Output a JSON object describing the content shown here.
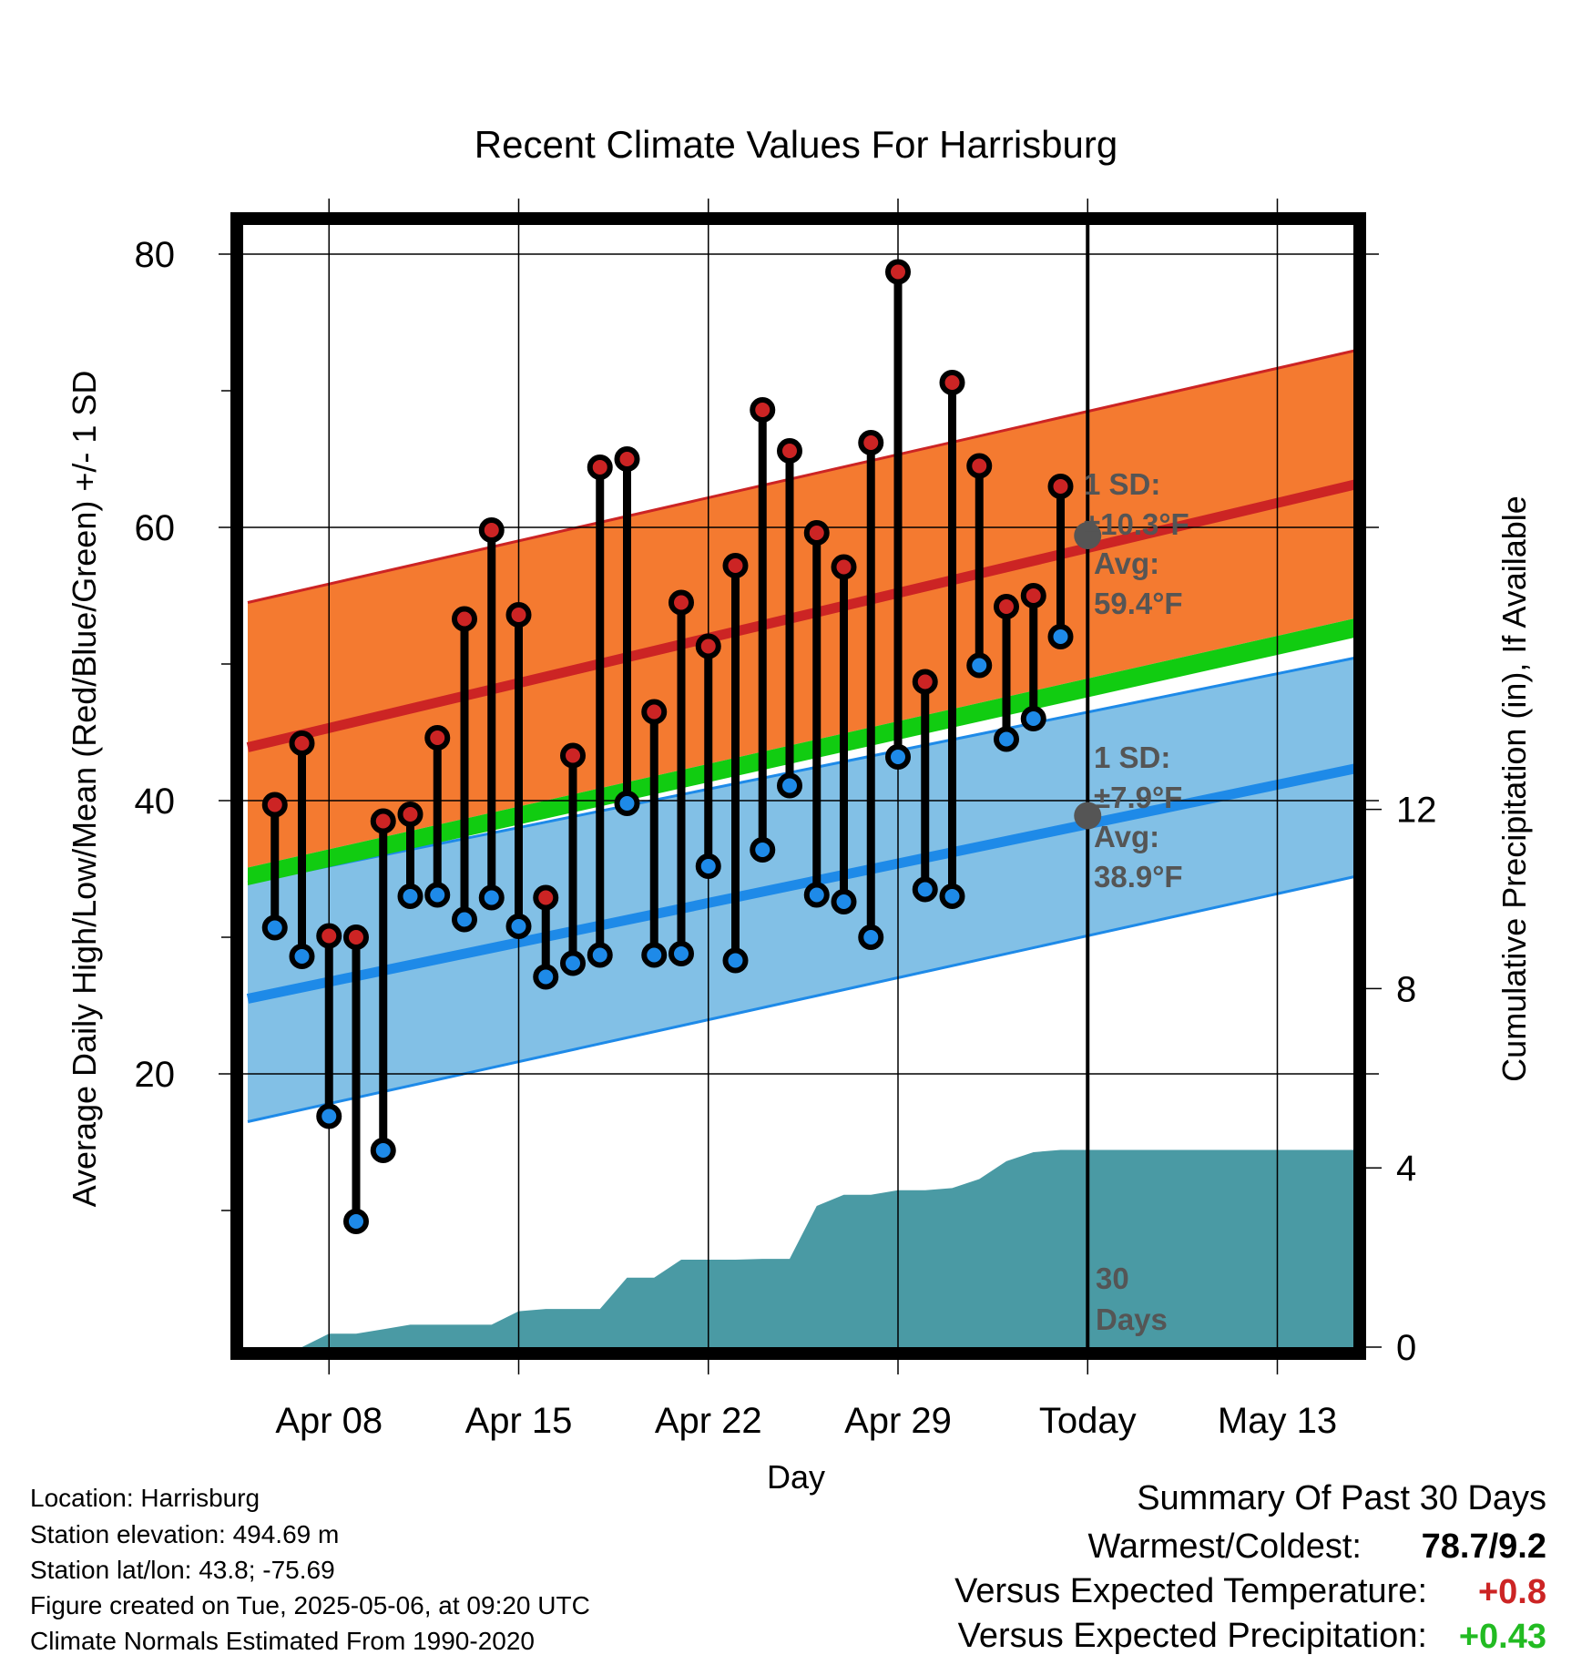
{
  "chart_data": {
    "type": "line",
    "title": "Recent Climate Values For Harrisburg",
    "xlabel": "Day",
    "ylabel": "Average Daily High/Low/Mean (Red/Blue/Green) +/- 1 SD",
    "ylabel_right": "Cumulative Precipitation (in), If Available",
    "ylim": [
      0,
      85
    ],
    "ylim_right": [
      0,
      24
    ],
    "x_start": "Apr 05",
    "today_index": 31,
    "x_ticks": [
      {
        "index": 3,
        "label": "Apr 08"
      },
      {
        "index": 10,
        "label": "Apr 15"
      },
      {
        "index": 17,
        "label": "Apr 22"
      },
      {
        "index": 24,
        "label": "Apr 29"
      },
      {
        "index": 31,
        "label": "Today"
      },
      {
        "index": 38,
        "label": "May 13"
      }
    ],
    "y_ticks": [
      20,
      40,
      60,
      80
    ],
    "y_ticks_right": [
      0,
      4,
      8,
      12
    ],
    "normals": {
      "x": [
        0,
        41
      ],
      "high_mean": [
        43.9,
        63.2
      ],
      "high_upper": [
        54.5,
        73.0
      ],
      "high_lower": [
        35.1,
        53.4
      ],
      "low_mean": [
        25.5,
        42.4
      ],
      "low_upper": [
        34.0,
        50.5
      ],
      "low_lower": [
        16.5,
        34.5
      ],
      "mean_upper": [
        35.1,
        53.4
      ],
      "mean_lower": [
        33.8,
        52.0
      ]
    },
    "series": [
      {
        "name": "High",
        "x": [
          1,
          2,
          3,
          4,
          5,
          6,
          7,
          8,
          9,
          10,
          11,
          12,
          13,
          14,
          15,
          16,
          17,
          18,
          19,
          20,
          21,
          22,
          23,
          24,
          25,
          26,
          27,
          28,
          29,
          30
        ],
        "values": [
          39.7,
          44.2,
          30.1,
          30.0,
          38.5,
          39.0,
          44.6,
          53.3,
          59.8,
          53.6,
          32.9,
          43.3,
          64.4,
          65.0,
          46.5,
          54.5,
          51.3,
          57.2,
          68.6,
          65.6,
          59.6,
          57.1,
          66.2,
          78.7,
          48.7,
          70.6,
          64.5,
          54.2,
          55.0,
          63.0
        ]
      },
      {
        "name": "Low",
        "x": [
          1,
          2,
          3,
          4,
          5,
          6,
          7,
          8,
          9,
          10,
          11,
          12,
          13,
          14,
          15,
          16,
          17,
          18,
          19,
          20,
          21,
          22,
          23,
          24,
          25,
          26,
          27,
          28,
          29,
          30
        ],
        "values": [
          30.7,
          28.6,
          16.9,
          9.2,
          14.4,
          33.0,
          33.1,
          31.3,
          32.9,
          30.8,
          27.1,
          28.1,
          28.7,
          39.8,
          28.7,
          28.8,
          35.2,
          28.3,
          36.4,
          41.1,
          33.1,
          32.6,
          30.0,
          43.2,
          33.5,
          33.0,
          49.9,
          44.5,
          46.0,
          52.0
        ]
      },
      {
        "name": "Cumulative Precipitation",
        "axis": "right",
        "x": [
          2,
          3,
          4,
          5,
          6,
          7,
          8,
          9,
          10,
          11,
          12,
          13,
          14,
          15,
          16,
          17,
          18,
          19,
          20,
          21,
          22,
          23,
          24,
          25,
          26,
          27,
          28,
          29,
          30,
          31,
          41
        ],
        "values": [
          0.0,
          0.3,
          0.3,
          0.4,
          0.5,
          0.5,
          0.5,
          0.5,
          0.8,
          0.85,
          0.85,
          0.85,
          1.55,
          1.55,
          1.95,
          1.95,
          1.95,
          1.97,
          1.97,
          3.15,
          3.4,
          3.4,
          3.5,
          3.5,
          3.55,
          3.75,
          4.15,
          4.35,
          4.4,
          4.4,
          4.4
        ]
      }
    ],
    "annotations": {
      "high_sd_label": "1 SD:",
      "high_sd_value": "±10.3°F",
      "high_avg_label": "Avg:",
      "high_avg_value": "59.4°F",
      "high_avg": 59.4,
      "low_sd_label": "1 SD:",
      "low_sd_value": "±7.9°F",
      "low_avg_label": "Avg:",
      "low_avg_value": "38.9°F",
      "low_avg": 38.9,
      "days_number": "30",
      "days_word": "Days"
    },
    "colors": {
      "high_band": "#f47a30",
      "high_line": "#cc2424",
      "low_band": "#82c0e6",
      "low_line": "#1e8ae8",
      "mean_band": "#11cc11",
      "precip": "#4a9aa4",
      "high_dot": "#cc2424",
      "low_dot": "#1e8ae8",
      "avg_marker": "#555555",
      "warm_value": "#cc2424",
      "precip_value": "#22bb22"
    }
  },
  "info": {
    "location": "Location: Harrisburg",
    "elevation": "Station elevation: 494.69 m",
    "latlon": "Station lat/lon: 43.8; -75.69",
    "created": "Figure created on Tue, 2025-05-06, at 09:20 UTC",
    "normals": "Climate Normals Estimated From 1990-2020"
  },
  "summary": {
    "title": "Summary Of Past 30 Days",
    "warmest_label": "Warmest/Coldest:",
    "warmest_value": "78.7/9.2",
    "temp_label": "Versus Expected Temperature:",
    "temp_value": "+0.8",
    "precip_label": "Versus Expected Precipitation:",
    "precip_value": "+0.43"
  }
}
